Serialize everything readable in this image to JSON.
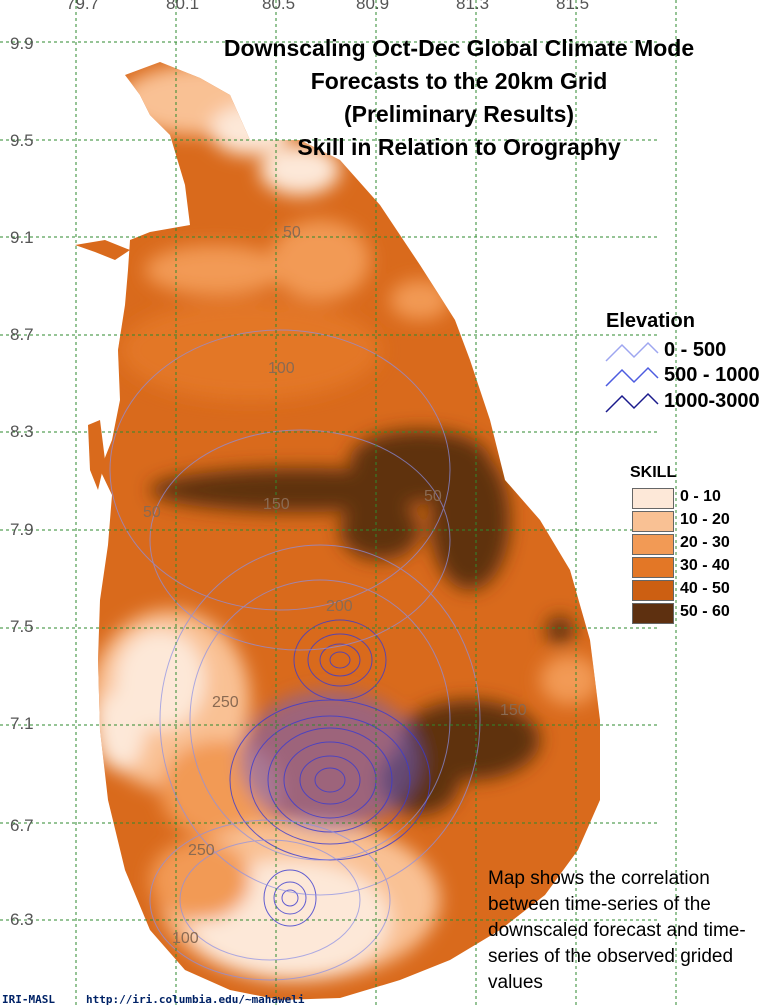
{
  "title_lines": [
    "Downscaling Oct-Dec Global Climate Mode",
    "Forecasts to the 20km Grid",
    "(Preliminary Results)",
    "Skill in Relation to Orography"
  ],
  "longitude_labels": [
    "79.7",
    "80.1",
    "80.5",
    "80.9",
    "81.3",
    "81.5"
  ],
  "latitude_labels": [
    "9.9",
    "9.5",
    "9.1",
    "8.7",
    "8.3",
    "7.9",
    "7.5",
    "7.1",
    "6.7",
    "6.3"
  ],
  "contour_labels": [
    "50",
    "100",
    "150",
    "50",
    "50",
    "200",
    "250",
    "150",
    "250",
    "100"
  ],
  "elevation_legend": {
    "title": "Elevation",
    "items": [
      {
        "label": "0 - 500",
        "color": "#9ea6f0"
      },
      {
        "label": "500 - 1000",
        "color": "#4d5ce0"
      },
      {
        "label": "1000-3000",
        "color": "#1a1a8c"
      }
    ]
  },
  "skill_legend": {
    "title": "SKILL",
    "items": [
      {
        "label": "0 - 10",
        "color": "#fde8d8"
      },
      {
        "label": "10 - 20",
        "color": "#f9c194"
      },
      {
        "label": "20 - 30",
        "color": "#f29a55"
      },
      {
        "label": "30 - 40",
        "color": "#e37726"
      },
      {
        "label": "40 - 50",
        "color": "#cc5f12"
      },
      {
        "label": "50 - 60",
        "color": "#5e3010"
      }
    ]
  },
  "note": "Map shows the correlation between time-series of the downscaled forecast and time-series of the observed grided values",
  "footer": {
    "org": "IRI-MASL",
    "url": "http://iri.columbia.edu/~mahaweli"
  }
}
